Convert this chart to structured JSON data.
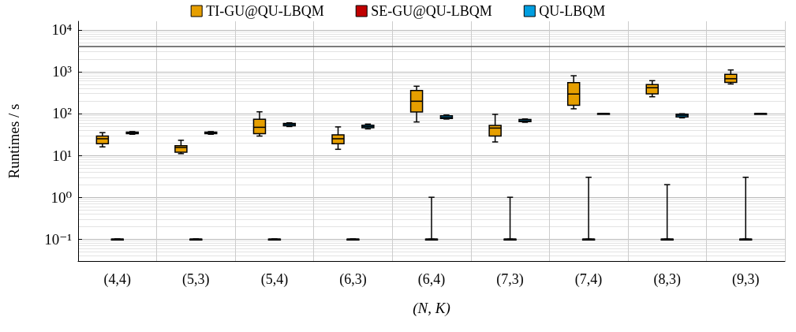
{
  "chart_data": {
    "type": "box",
    "xlabel": "(N, K)",
    "ylabel": "Runtimes / s",
    "categories": [
      "(4,4)",
      "(5,3)",
      "(5,4)",
      "(6,3)",
      "(6,4)",
      "(7,3)",
      "(7,4)",
      "(8,3)",
      "(9,3)"
    ],
    "series": [
      {
        "name": "TI-GU@QU-LBQM",
        "color": "#e69f00",
        "boxes": [
          {
            "low": 16,
            "q1": 19,
            "median": 25,
            "q3": 29,
            "high": 35
          },
          {
            "low": 11,
            "q1": 12,
            "median": 15.5,
            "q3": 17,
            "high": 23
          },
          {
            "low": 29,
            "q1": 33,
            "median": 47,
            "q3": 73,
            "high": 110
          },
          {
            "low": 14,
            "q1": 19,
            "median": 25,
            "q3": 31,
            "high": 48
          },
          {
            "low": 63,
            "q1": 109,
            "median": 197,
            "q3": 355,
            "high": 450
          },
          {
            "low": 21,
            "q1": 29,
            "median": 45,
            "q3": 52,
            "high": 96
          },
          {
            "low": 130,
            "q1": 157,
            "median": 293,
            "q3": 550,
            "high": 800
          },
          {
            "low": 252,
            "q1": 297,
            "median": 414,
            "q3": 490,
            "high": 610
          },
          {
            "low": 510,
            "q1": 553,
            "median": 680,
            "q3": 870,
            "high": 1100
          }
        ]
      },
      {
        "name": "SE-GU@QU-LBQM",
        "color": "#c00000",
        "boxes": [
          {
            "low": 0.1,
            "q1": 0.1,
            "median": 0.1,
            "q3": 0.1,
            "high": 0.1
          },
          {
            "low": 0.1,
            "q1": 0.1,
            "median": 0.1,
            "q3": 0.1,
            "high": 0.1
          },
          {
            "low": 0.1,
            "q1": 0.1,
            "median": 0.1,
            "q3": 0.1,
            "high": 0.1
          },
          {
            "low": 0.1,
            "q1": 0.1,
            "median": 0.1,
            "q3": 0.1,
            "high": 0.1
          },
          {
            "low": 0.1,
            "q1": 0.1,
            "median": 0.1,
            "q3": 0.1,
            "high": 1
          },
          {
            "low": 0.1,
            "q1": 0.1,
            "median": 0.1,
            "q3": 0.1,
            "high": 1
          },
          {
            "low": 0.1,
            "q1": 0.1,
            "median": 0.1,
            "q3": 0.1,
            "high": 3
          },
          {
            "low": 0.1,
            "q1": 0.1,
            "median": 0.1,
            "q3": 0.1,
            "high": 2
          },
          {
            "low": 0.1,
            "q1": 0.1,
            "median": 0.1,
            "q3": 0.1,
            "high": 3
          }
        ]
      },
      {
        "name": "QU-LBQM",
        "color": "#009ee0",
        "boxes": [
          {
            "low": 32,
            "q1": 33,
            "median": 34,
            "q3": 36,
            "high": 37
          },
          {
            "low": 32,
            "q1": 33,
            "median": 34,
            "q3": 36,
            "high": 37
          },
          {
            "low": 49,
            "q1": 51,
            "median": 55,
            "q3": 58,
            "high": 60
          },
          {
            "low": 43,
            "q1": 46,
            "median": 49,
            "q3": 53,
            "high": 56
          },
          {
            "low": 74,
            "q1": 76,
            "median": 81,
            "q3": 89,
            "high": 92
          },
          {
            "low": 62,
            "q1": 64,
            "median": 67,
            "q3": 72,
            "high": 74
          },
          {
            "low": 100,
            "q1": 100,
            "median": 100,
            "q3": 100,
            "high": 100
          },
          {
            "low": 79,
            "q1": 83,
            "median": 91,
            "q3": 97,
            "high": 99
          },
          {
            "low": 100,
            "q1": 100,
            "median": 100,
            "q3": 100,
            "high": 100
          }
        ]
      }
    ],
    "log": "y",
    "ylim": [
      0.03,
      16000
    ],
    "yticks": [
      {
        "value": 0.1,
        "label": "10⁻¹"
      },
      {
        "value": 1,
        "label": "10⁰"
      },
      {
        "value": 10,
        "label": "10¹"
      },
      {
        "value": 100,
        "label": "10²"
      },
      {
        "value": 1000,
        "label": "10³"
      },
      {
        "value": 10000,
        "label": "10⁴"
      }
    ],
    "ref_lines": [
      {
        "axis": "y",
        "value": 4000,
        "color": "#555555"
      }
    ],
    "grid": true,
    "legend": "top"
  }
}
